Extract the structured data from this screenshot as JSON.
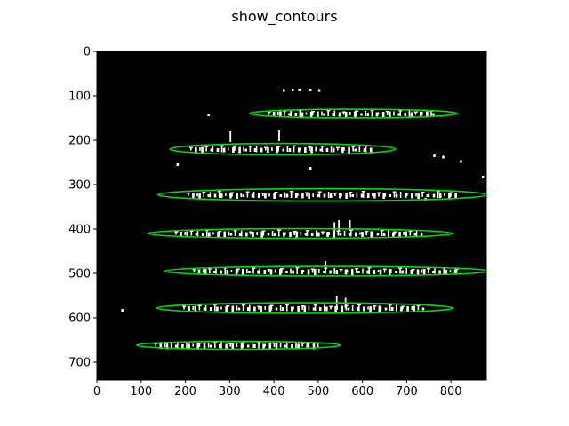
{
  "figure": {
    "title": "show_contours"
  },
  "axes": {
    "x_ticks": [
      {
        "value": 0,
        "label": "0"
      },
      {
        "value": 100,
        "label": "100"
      },
      {
        "value": 200,
        "label": "200"
      },
      {
        "value": 300,
        "label": "300"
      },
      {
        "value": 400,
        "label": "400"
      },
      {
        "value": 500,
        "label": "500"
      },
      {
        "value": 600,
        "label": "600"
      },
      {
        "value": 700,
        "label": "700"
      },
      {
        "value": 800,
        "label": "800"
      }
    ],
    "y_ticks": [
      {
        "value": 0,
        "label": "0"
      },
      {
        "value": 100,
        "label": "100"
      },
      {
        "value": 200,
        "label": "200"
      },
      {
        "value": 300,
        "label": "300"
      },
      {
        "value": 400,
        "label": "400"
      },
      {
        "value": 500,
        "label": "500"
      },
      {
        "value": 600,
        "label": "600"
      },
      {
        "value": 700,
        "label": "700"
      }
    ],
    "xlim": [
      0,
      880
    ],
    "ylim": [
      740,
      0
    ]
  },
  "image": {
    "background": "#000000",
    "ink_color": "#ffffff",
    "contour_color": "#00dd00"
  },
  "contours": [
    {
      "cx": 580,
      "cy": 140,
      "rx": 235,
      "ry": 10
    },
    {
      "cx": 420,
      "cy": 220,
      "rx": 255,
      "ry": 13
    },
    {
      "cx": 510,
      "cy": 323,
      "rx": 372,
      "ry": 14
    },
    {
      "cx": 460,
      "cy": 410,
      "rx": 345,
      "ry": 11
    },
    {
      "cx": 520,
      "cy": 495,
      "rx": 368,
      "ry": 11
    },
    {
      "cx": 470,
      "cy": 578,
      "rx": 335,
      "ry": 12
    },
    {
      "cx": 320,
      "cy": 662,
      "rx": 230,
      "ry": 9
    }
  ]
}
